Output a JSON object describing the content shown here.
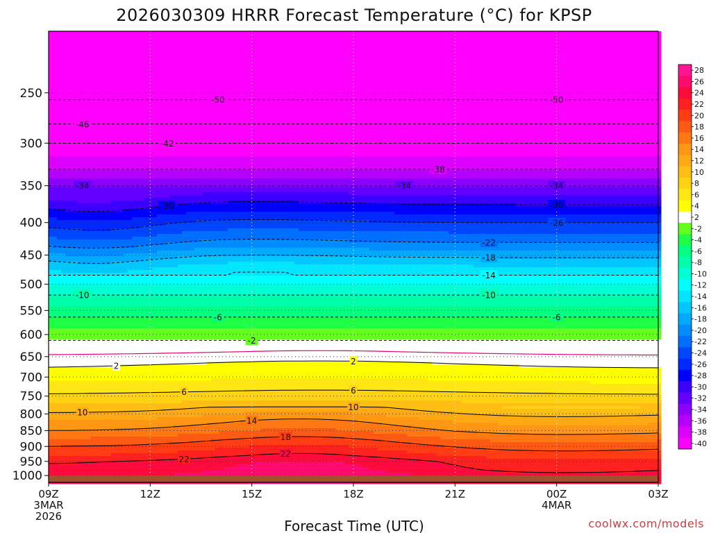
{
  "chart_data": {
    "type": "heatmap",
    "title": "2026030309 HRRR Forecast Temperature (°C) for KPSP",
    "xlabel": "Forecast Time (UTC)",
    "ylabel": "",
    "credit": "coolwx.com/models",
    "x_ticks": [
      {
        "hour": 9,
        "lines": [
          "09Z",
          "3MAR",
          "2026"
        ]
      },
      {
        "hour": 12,
        "lines": [
          "12Z"
        ]
      },
      {
        "hour": 15,
        "lines": [
          "15Z"
        ]
      },
      {
        "hour": 18,
        "lines": [
          "18Z"
        ]
      },
      {
        "hour": 21,
        "lines": [
          "21Z"
        ]
      },
      {
        "hour": 24,
        "lines": [
          "00Z",
          "4MAR"
        ]
      },
      {
        "hour": 27,
        "lines": [
          "03Z"
        ]
      }
    ],
    "xlim": [
      9,
      27
    ],
    "y_axis": "pressure (hPa), log scale, inverted",
    "y_ticks": [
      250,
      300,
      350,
      400,
      450,
      500,
      550,
      600,
      650,
      700,
      750,
      800,
      850,
      900,
      950,
      1000
    ],
    "ylim": [
      200,
      1025
    ],
    "surface_pressure_hpa": 1000,
    "colorbar": {
      "levels": [
        28,
        26,
        24,
        22,
        20,
        18,
        16,
        14,
        12,
        10,
        8,
        6,
        4,
        2,
        -2,
        -4,
        -6,
        -8,
        -10,
        -12,
        -14,
        -16,
        -18,
        -20,
        -22,
        -24,
        -26,
        -28,
        -30,
        -32,
        -34,
        -36,
        -38,
        -40
      ],
      "colors": [
        "#ff1493",
        "#ff0a6e",
        "#ff0a3c",
        "#ff2020",
        "#ff3c14",
        "#ff5a14",
        "#ff7814",
        "#ff9614",
        "#ffaa14",
        "#ffbe14",
        "#ffd214",
        "#ffe614",
        "#ffff00",
        "#ffffff",
        "#64ff1e",
        "#1eff46",
        "#00ff82",
        "#00ffaa",
        "#00ffd2",
        "#00ffff",
        "#00e6ff",
        "#00c8ff",
        "#00aaff",
        "#008cff",
        "#006eff",
        "#0046ff",
        "#0028ff",
        "#0000ff",
        "#3c00ff",
        "#6400ff",
        "#8c00ff",
        "#b400ff",
        "#dc00ff",
        "#ff00ff"
      ]
    },
    "isotherms": [
      {
        "value": 22,
        "labels": [
          {
            "hour": 13.0
          },
          {
            "hour": 16.0
          }
        ]
      },
      {
        "value": 18,
        "labels": [
          {
            "hour": 16.0
          }
        ]
      },
      {
        "value": 14,
        "labels": [
          {
            "hour": 15.0
          }
        ]
      },
      {
        "value": 10,
        "labels": [
          {
            "hour": 10.0
          },
          {
            "hour": 18.0
          }
        ]
      },
      {
        "value": 6,
        "labels": [
          {
            "hour": 13.0
          },
          {
            "hour": 18.0
          }
        ]
      },
      {
        "value": 2,
        "labels": [
          {
            "hour": 11.0
          },
          {
            "hour": 18.0
          }
        ]
      },
      {
        "value": 0,
        "labels": []
      },
      {
        "value": -2,
        "labels": [
          {
            "hour": 15.0
          }
        ]
      },
      {
        "value": -6,
        "labels": [
          {
            "hour": 14.0
          },
          {
            "hour": 24.0
          }
        ]
      },
      {
        "value": -10,
        "labels": [
          {
            "hour": 10.0
          },
          {
            "hour": 22.0
          }
        ]
      },
      {
        "value": -14,
        "labels": [
          {
            "hour": 22.0
          }
        ]
      },
      {
        "value": -18,
        "labels": [
          {
            "hour": 22.0
          }
        ]
      },
      {
        "value": -22,
        "labels": [
          {
            "hour": 22.0
          }
        ]
      },
      {
        "value": -26,
        "labels": [
          {
            "hour": 24.0
          }
        ]
      },
      {
        "value": -30,
        "labels": [
          {
            "hour": 12.5
          },
          {
            "hour": 24.0
          }
        ]
      },
      {
        "value": -34,
        "labels": [
          {
            "hour": 10.0
          },
          {
            "hour": 19.5
          },
          {
            "hour": 24.0
          }
        ]
      },
      {
        "value": -38,
        "labels": [
          {
            "hour": 20.5
          }
        ]
      },
      {
        "value": -42,
        "labels": [
          {
            "hour": 12.5
          }
        ]
      },
      {
        "value": -46,
        "labels": [
          {
            "hour": 10.0
          }
        ]
      },
      {
        "value": -50,
        "labels": [
          {
            "hour": 14.0
          },
          {
            "hour": 24.0
          }
        ]
      }
    ]
  }
}
